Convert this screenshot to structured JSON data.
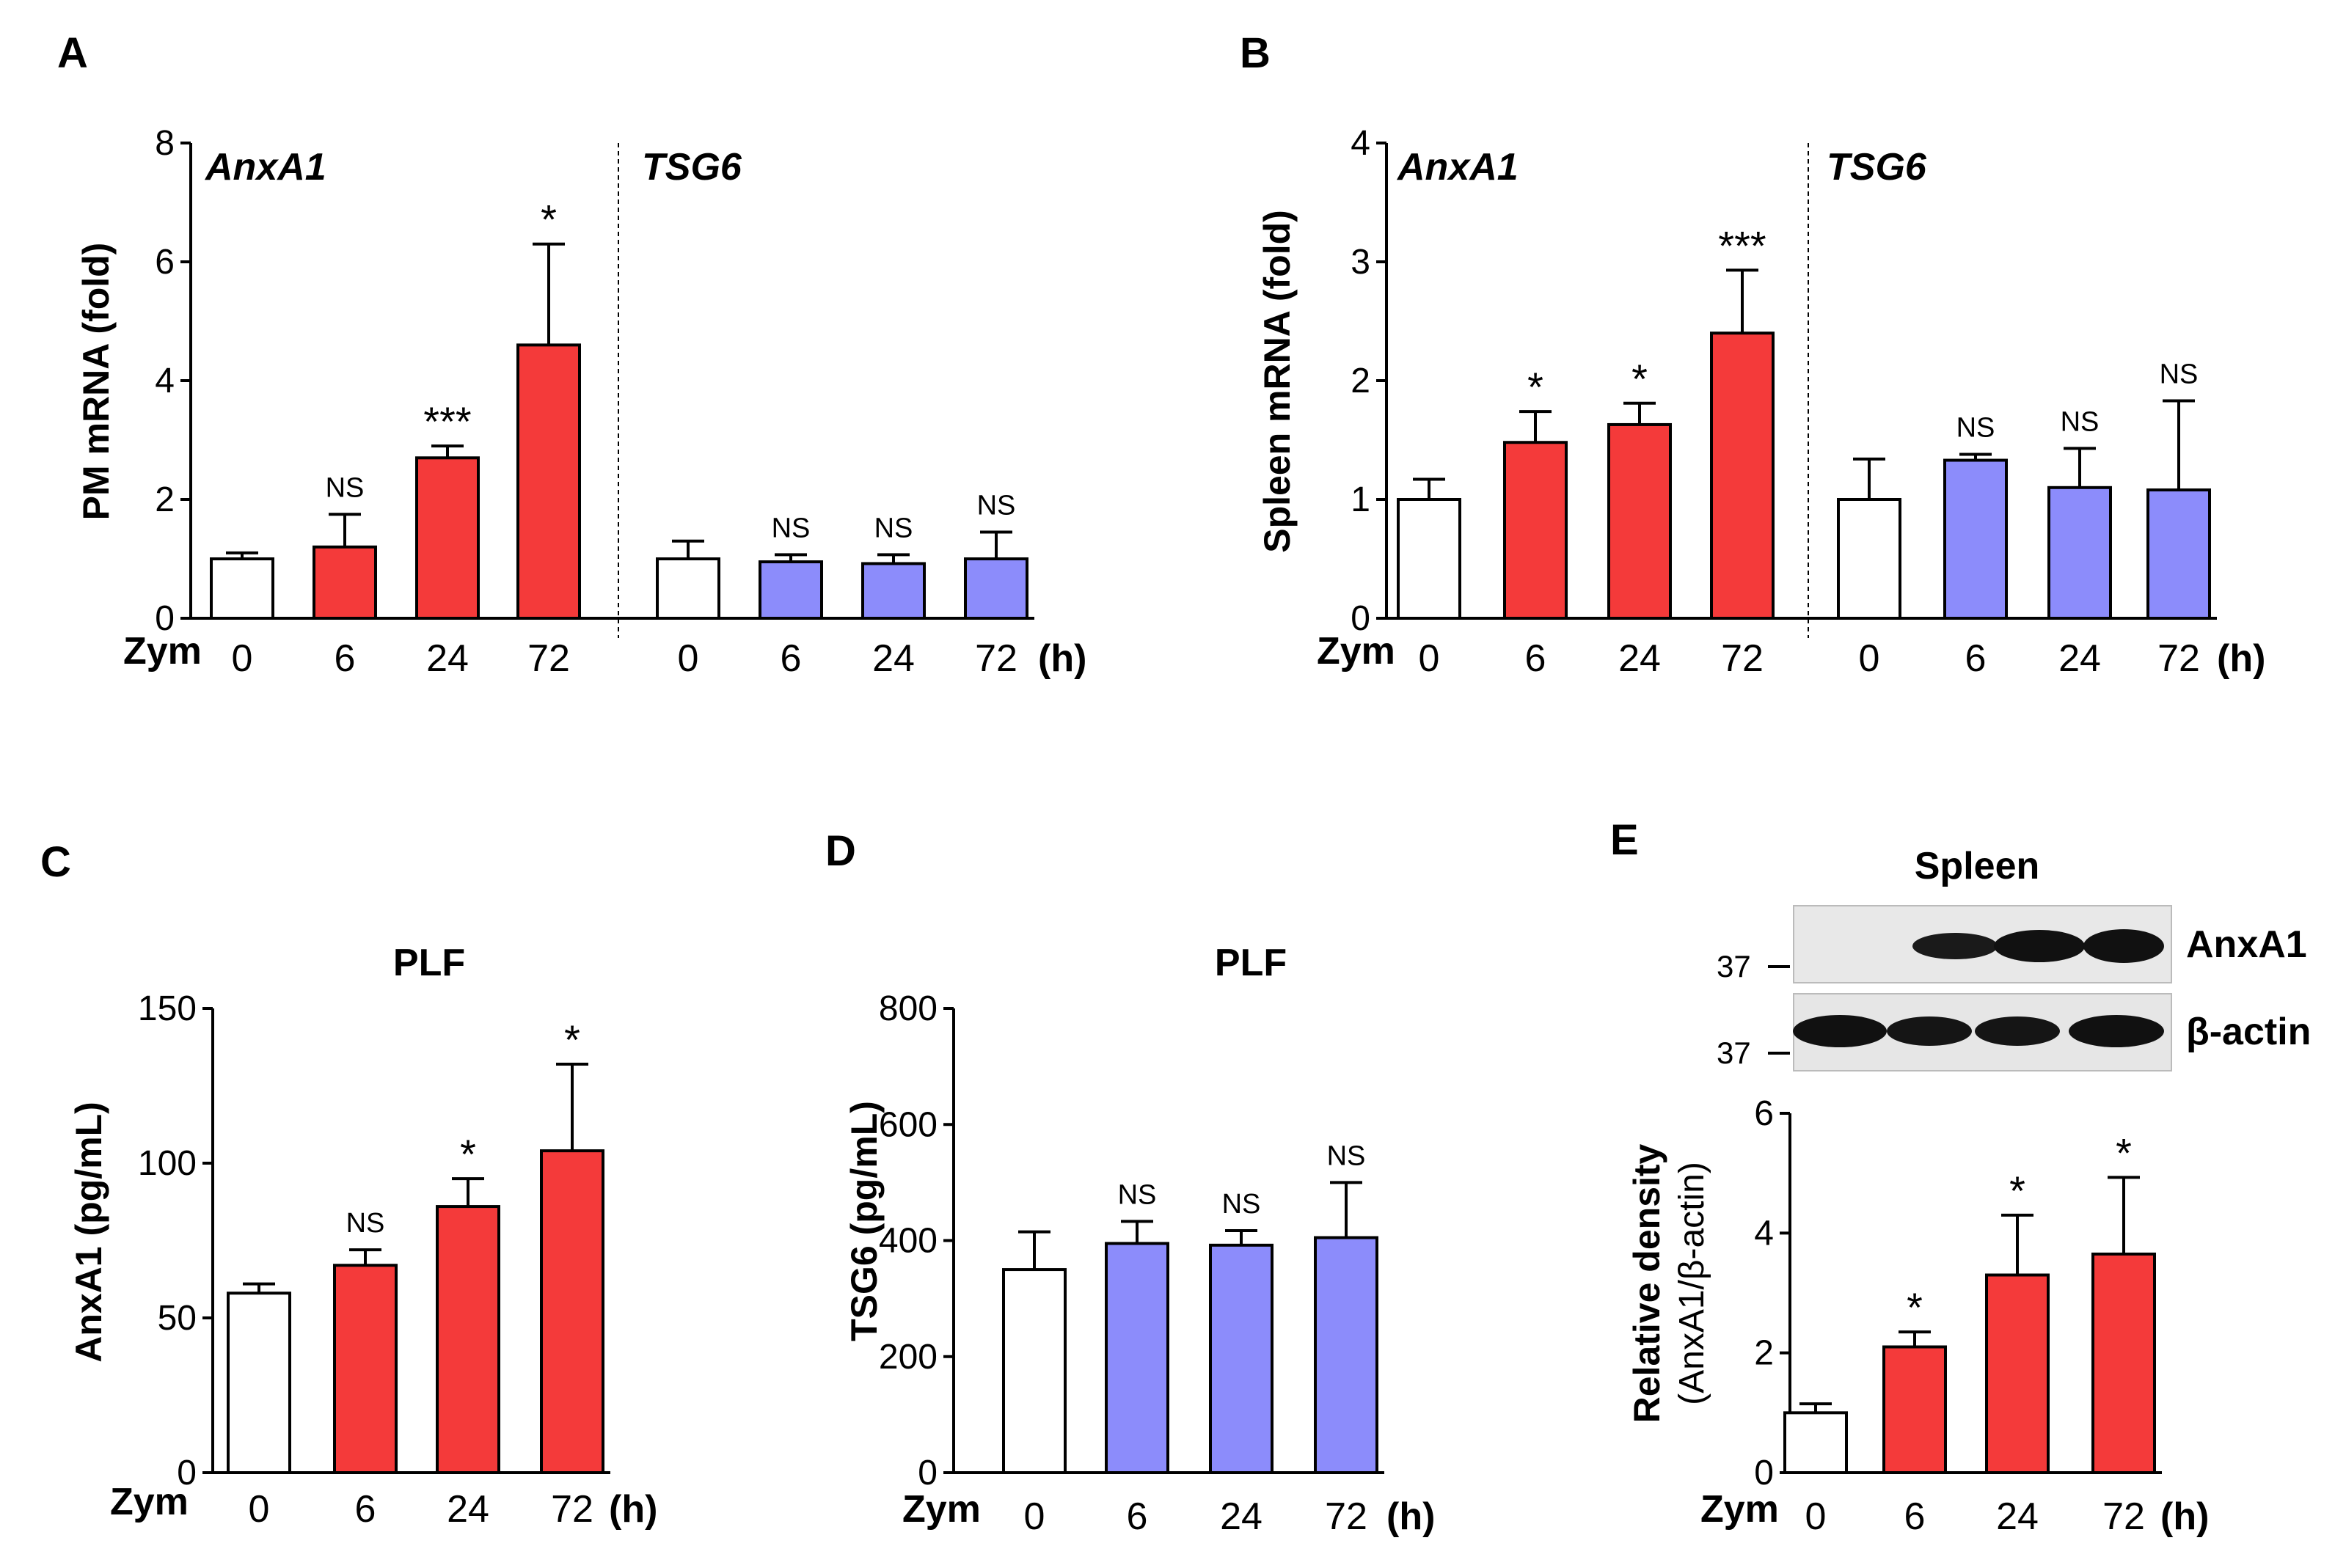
{
  "colors": {
    "control": "#ffffff",
    "anxa1": "#f43a3a",
    "tsg6": "#8c8cfb",
    "outline": "#000000"
  },
  "chart_data": [
    {
      "panel": "A",
      "type": "bar",
      "ylabel": "PM mRNA (fold)",
      "ylim": [
        0,
        8
      ],
      "yticks": [
        "0",
        "2",
        "4",
        "6",
        "8"
      ],
      "xprefix": "Zym",
      "xunit": "(h)",
      "groups": [
        {
          "name": "AnxA1",
          "categories": [
            "0",
            "6",
            "24",
            "72"
          ],
          "values": [
            1.0,
            1.2,
            2.7,
            4.6
          ],
          "errors": [
            0.1,
            0.55,
            0.2,
            1.7
          ],
          "fills": [
            "control",
            "anxa1",
            "anxa1",
            "anxa1"
          ],
          "annotations": [
            "",
            "NS",
            "***",
            "*"
          ]
        },
        {
          "name": "TSG6",
          "categories": [
            "0",
            "6",
            "24",
            "72"
          ],
          "values": [
            1.0,
            0.95,
            0.92,
            1.0
          ],
          "errors": [
            0.3,
            0.12,
            0.15,
            0.45
          ],
          "fills": [
            "control",
            "tsg6",
            "tsg6",
            "tsg6"
          ],
          "annotations": [
            "",
            "NS",
            "NS",
            "NS"
          ]
        }
      ]
    },
    {
      "panel": "B",
      "type": "bar",
      "ylabel": "Spleen mRNA (fold)",
      "ylim": [
        0,
        4
      ],
      "yticks": [
        "0",
        "1",
        "2",
        "3",
        "4"
      ],
      "xprefix": "Zym",
      "xunit": "(h)",
      "groups": [
        {
          "name": "AnxA1",
          "categories": [
            "0",
            "6",
            "24",
            "72"
          ],
          "values": [
            1.0,
            1.48,
            1.63,
            2.4
          ],
          "errors": [
            0.17,
            0.26,
            0.18,
            0.53
          ],
          "fills": [
            "control",
            "anxa1",
            "anxa1",
            "anxa1"
          ],
          "annotations": [
            "",
            "*",
            "*",
            "***"
          ]
        },
        {
          "name": "TSG6",
          "categories": [
            "0",
            "6",
            "24",
            "72"
          ],
          "values": [
            1.0,
            1.33,
            1.1,
            1.08
          ],
          "errors": [
            0.34,
            0.05,
            0.33,
            0.75
          ],
          "fills": [
            "control",
            "tsg6",
            "tsg6",
            "tsg6"
          ],
          "annotations": [
            "",
            "NS",
            "NS",
            "NS"
          ]
        }
      ]
    },
    {
      "panel": "C",
      "type": "bar",
      "title": "PLF",
      "ylabel": "AnxA1 (pg/mL)",
      "ylim": [
        0,
        150
      ],
      "yticks": [
        "0",
        "50",
        "100",
        "150"
      ],
      "xprefix": "Zym",
      "xunit": "(h)",
      "categories": [
        "0",
        "6",
        "24",
        "72"
      ],
      "values": [
        58,
        67,
        86,
        104
      ],
      "errors": [
        3,
        5,
        9,
        28
      ],
      "fills": [
        "control",
        "anxa1",
        "anxa1",
        "anxa1"
      ],
      "annotations": [
        "",
        "NS",
        "*",
        "*"
      ]
    },
    {
      "panel": "D",
      "type": "bar",
      "title": "PLF",
      "ylabel": "TSG6 (pg/mL)",
      "ylim": [
        0,
        800
      ],
      "yticks": [
        "0",
        "200",
        "400",
        "600",
        "800"
      ],
      "xprefix": "Zym",
      "xunit": "(h)",
      "categories": [
        "0",
        "6",
        "24",
        "72"
      ],
      "values": [
        350,
        395,
        392,
        405
      ],
      "errors": [
        65,
        38,
        25,
        95
      ],
      "fills": [
        "control",
        "tsg6",
        "tsg6",
        "tsg6"
      ],
      "annotations": [
        "",
        "NS",
        "NS",
        "NS"
      ]
    },
    {
      "panel": "E",
      "type": "bar",
      "title": "Spleen",
      "ylabel": "Relative density",
      "ylabel2": "(AnxA1/β-actin)",
      "ylim": [
        0,
        6
      ],
      "yticks": [
        "0",
        "2",
        "4",
        "6"
      ],
      "xprefix": "Zym",
      "xunit": "(h)",
      "categories": [
        "0",
        "6",
        "24",
        "72"
      ],
      "values": [
        1.0,
        2.1,
        3.3,
        3.65
      ],
      "errors": [
        0.15,
        0.25,
        1.0,
        1.28
      ],
      "fills": [
        "control",
        "anxa1",
        "anxa1",
        "anxa1"
      ],
      "annotations": [
        "",
        "*",
        "*",
        "*"
      ],
      "blot": {
        "rows": [
          {
            "label": "AnxA1",
            "mw": "37"
          },
          {
            "label": "β-actin",
            "mw": "37"
          }
        ]
      }
    }
  ]
}
